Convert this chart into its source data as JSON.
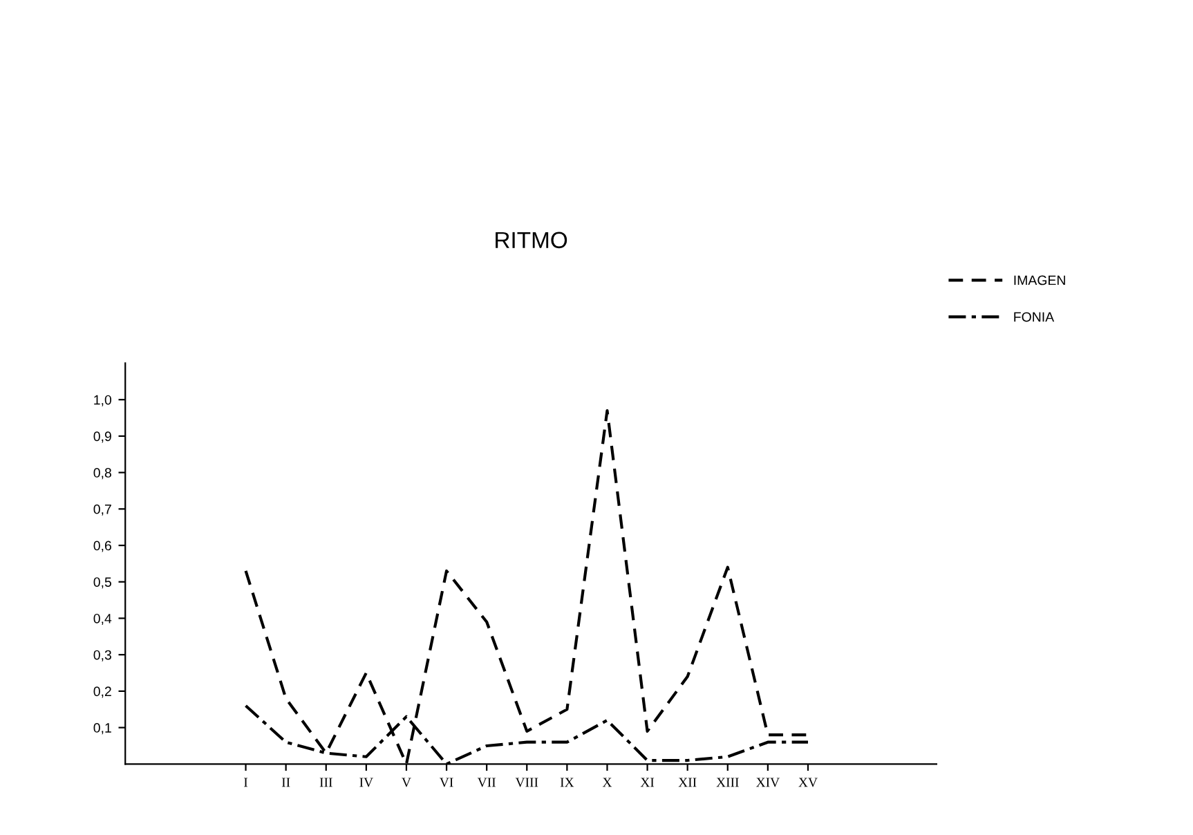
{
  "chart_data": {
    "type": "line",
    "title": "RITMO",
    "categories": [
      "I",
      "II",
      "III",
      "IV",
      "V",
      "VI",
      "VII",
      "VIII",
      "IX",
      "X",
      "XI",
      "XII",
      "XIII",
      "XIV",
      "XV"
    ],
    "series": [
      {
        "name": "IMAGEN",
        "color": "#000000",
        "line_style": "dashed",
        "values": [
          0.53,
          0.18,
          0.03,
          0.25,
          0.0,
          0.53,
          0.39,
          0.09,
          0.15,
          0.97,
          0.09,
          0.24,
          0.54,
          0.08,
          0.08
        ]
      },
      {
        "name": "FONIA",
        "color": "#000000",
        "line_style": "dashdot",
        "values": [
          0.16,
          0.06,
          0.03,
          0.02,
          0.13,
          0.0,
          0.05,
          0.06,
          0.06,
          0.12,
          0.01,
          0.01,
          0.02,
          0.06,
          0.06
        ]
      }
    ],
    "ylim": [
      0,
      1.1
    ],
    "yticks": [
      {
        "value": 0.1,
        "label": "0,1"
      },
      {
        "value": 0.2,
        "label": "0,2"
      },
      {
        "value": 0.3,
        "label": "0,3"
      },
      {
        "value": 0.4,
        "label": "0,4"
      },
      {
        "value": 0.5,
        "label": "0,5"
      },
      {
        "value": 0.6,
        "label": "0,6"
      },
      {
        "value": 0.7,
        "label": "0,7"
      },
      {
        "value": 0.8,
        "label": "0,8"
      },
      {
        "value": 0.9,
        "label": "0,9"
      },
      {
        "value": 1.0,
        "label": "1,0"
      }
    ],
    "grid": false,
    "legend": "top right",
    "marker": "none"
  }
}
